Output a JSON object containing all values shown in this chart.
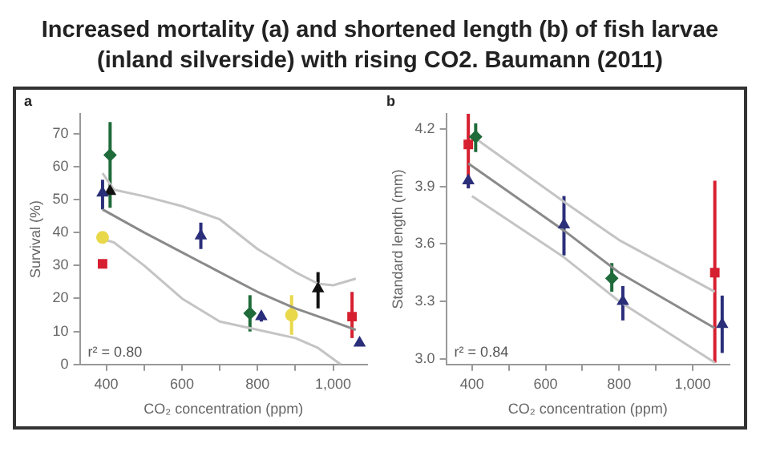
{
  "chart_data": [
    {
      "type": "scatter",
      "title": "Increased mortality (a) and shortened length (b) of fish larvae (inland silverside) with rising CO2. Baumann (2011)",
      "xlabel": "CO₂ concentration (ppm)",
      "ylabel": "Survival (%)",
      "annotations": [
        "a",
        "r² = 0.80"
      ],
      "xlim": [
        330,
        1090
      ],
      "ylim": [
        0,
        76
      ],
      "xticks": [
        400,
        {
          "value": 500,
          "label": null
        },
        600,
        {
          "value": 700,
          "label": null
        },
        800,
        {
          "value": 900,
          "label": null
        },
        {
          "value": 1000,
          "label": "1,000"
        }
      ],
      "yticks": [
        0,
        10,
        20,
        30,
        40,
        50,
        60,
        70
      ],
      "grid": false,
      "legend": false,
      "series": [
        {
          "type": "line",
          "color": "#8a8a8a",
          "marker": "none",
          "x": [
            390,
            500,
            600,
            700,
            800,
            900,
            1000,
            1060
          ],
          "values": [
            47,
            40,
            34,
            28,
            22,
            17,
            13,
            10.5
          ]
        },
        {
          "type": "line",
          "color": "#c4c4c4",
          "marker": "none",
          "x": [
            390,
            420,
            500,
            600,
            700,
            800,
            900,
            960,
            1000,
            1060
          ],
          "values": [
            58,
            53,
            51,
            48,
            44,
            35,
            28,
            24.5,
            24,
            26
          ]
        },
        {
          "type": "line",
          "color": "#c4c4c4",
          "marker": "none",
          "x": [
            390,
            420,
            500,
            600,
            700,
            800,
            900,
            960,
            1020
          ],
          "values": [
            38,
            37,
            30,
            20,
            13,
            10.5,
            8,
            5,
            0
          ]
        },
        {
          "color": "#1f6b3a",
          "marker": "diamond",
          "x": [
            410,
            780
          ],
          "values": [
            63.5,
            15.5
          ],
          "errors": [
            [
              47.5,
              73.5
            ],
            [
              10,
              21
            ]
          ]
        },
        {
          "color": "#2b2f7a",
          "marker": "triangle",
          "x": [
            390,
            650,
            810,
            1070
          ],
          "values": [
            52,
            39,
            14.5,
            6.5
          ],
          "errors": [
            [
              47,
              56
            ],
            [
              35,
              43
            ],
            [
              13,
              16
            ],
            null
          ]
        },
        {
          "color": "#111111",
          "marker": "triangle",
          "x": [
            410,
            960
          ],
          "values": [
            52.5,
            23
          ],
          "errors": [
            null,
            [
              17,
              28
            ]
          ]
        },
        {
          "color": "#e8d84a",
          "marker": "circle",
          "x": [
            390,
            890
          ],
          "values": [
            38.5,
            15
          ],
          "errors": [
            null,
            [
              9,
              21
            ]
          ]
        },
        {
          "color": "#d62030",
          "marker": "square",
          "x": [
            390,
            1050
          ],
          "values": [
            30.5,
            14.5
          ],
          "errors": [
            null,
            [
              8,
              22
            ]
          ]
        }
      ]
    },
    {
      "type": "scatter",
      "xlabel": "CO₂ concentration (ppm)",
      "ylabel": "Standard length (mm)",
      "annotations": [
        "b",
        "r² = 0.84"
      ],
      "xlim": [
        330,
        1100
      ],
      "ylim": [
        2.97,
        4.28
      ],
      "xticks": [
        400,
        {
          "value": 500,
          "label": null
        },
        600,
        {
          "value": 700,
          "label": null
        },
        800,
        {
          "value": 900,
          "label": null
        },
        {
          "value": 1000,
          "label": "1,000"
        }
      ],
      "yticks": [
        {
          "value": 3,
          "label": "3.0"
        },
        3.3,
        3.6,
        3.9,
        4.2
      ],
      "grid": false,
      "legend": false,
      "series": [
        {
          "type": "line",
          "color": "#8a8a8a",
          "marker": "none",
          "x": [
            390,
            650,
            800,
            1060
          ],
          "values": [
            4.02,
            3.67,
            3.45,
            3.16
          ]
        },
        {
          "type": "line",
          "color": "#c4c4c4",
          "marker": "none",
          "x": [
            410,
            650,
            800,
            1060
          ],
          "values": [
            4.15,
            3.82,
            3.62,
            3.35
          ]
        },
        {
          "type": "line",
          "color": "#c4c4c4",
          "marker": "none",
          "x": [
            400,
            650,
            800,
            1060
          ],
          "values": [
            3.85,
            3.53,
            3.3,
            2.98
          ]
        },
        {
          "color": "#d62030",
          "marker": "square",
          "x": [
            390,
            1060
          ],
          "values": [
            4.12,
            3.45
          ],
          "errors": [
            [
              3.9,
              4.28
            ],
            [
              2.98,
              3.93
            ]
          ]
        },
        {
          "color": "#1f6b3a",
          "marker": "diamond",
          "x": [
            410,
            780
          ],
          "values": [
            4.16,
            3.42
          ],
          "errors": [
            [
              4.08,
              4.23
            ],
            [
              3.35,
              3.5
            ]
          ]
        },
        {
          "color": "#2b2f7a",
          "marker": "triangle",
          "x": [
            390,
            650,
            810,
            1080
          ],
          "values": [
            3.93,
            3.7,
            3.3,
            3.18
          ],
          "errors": [
            [
              3.89,
              3.95
            ],
            [
              3.54,
              3.85
            ],
            [
              3.2,
              3.38
            ],
            [
              3.03,
              3.33
            ]
          ]
        }
      ]
    }
  ]
}
